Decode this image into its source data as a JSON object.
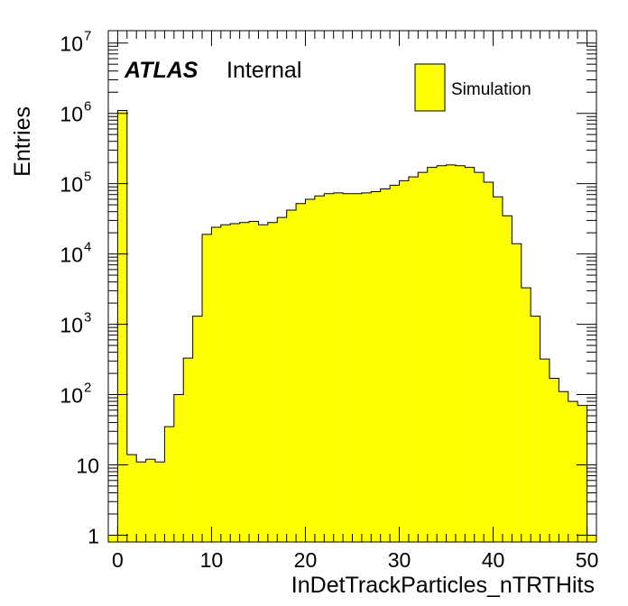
{
  "chart_data": {
    "type": "bar",
    "title": "",
    "xlabel": "InDetTrackParticles_nTRTHits",
    "ylabel": "Entries",
    "ylog": true,
    "xlim": [
      -1,
      51
    ],
    "ylim": [
      0.8,
      15000000
    ],
    "x_ticks": [
      0,
      10,
      20,
      30,
      40,
      50
    ],
    "y_ticks": [
      {
        "value": 1,
        "base": "1",
        "exp": ""
      },
      {
        "value": 10,
        "base": "10",
        "exp": ""
      },
      {
        "value": 100,
        "base": "10",
        "exp": "2"
      },
      {
        "value": 1000,
        "base": "10",
        "exp": "3"
      },
      {
        "value": 10000,
        "base": "10",
        "exp": "4"
      },
      {
        "value": 100000,
        "base": "10",
        "exp": "5"
      },
      {
        "value": 1000000,
        "base": "10",
        "exp": "6"
      },
      {
        "value": 10000000,
        "base": "10",
        "exp": "7"
      }
    ],
    "bin_width": 1,
    "series": [
      {
        "name": "Simulation",
        "color": "#ffff00",
        "x": [
          -1,
          0,
          1,
          2,
          3,
          4,
          5,
          6,
          7,
          8,
          9,
          10,
          11,
          12,
          13,
          14,
          15,
          16,
          17,
          18,
          19,
          20,
          21,
          22,
          23,
          24,
          25,
          26,
          27,
          28,
          29,
          30,
          31,
          32,
          33,
          34,
          35,
          36,
          37,
          38,
          39,
          40,
          41,
          42,
          43,
          44,
          45,
          46,
          47,
          48,
          49,
          50
        ],
        "values": [
          1,
          1100000,
          14,
          11,
          12,
          11,
          35,
          100,
          330,
          1300,
          19000,
          24000,
          26000,
          27000,
          28000,
          29000,
          26000,
          28000,
          33000,
          42000,
          52000,
          60000,
          67000,
          72000,
          74000,
          72000,
          72000,
          74000,
          77000,
          84000,
          95000,
          110000,
          125000,
          145000,
          170000,
          180000,
          185000,
          180000,
          170000,
          145000,
          105000,
          65000,
          35000,
          14000,
          3300,
          1300,
          320,
          170,
          110,
          80,
          70,
          1
        ]
      }
    ]
  },
  "annotation": {
    "atlas": "ATLAS",
    "internal": "Internal"
  },
  "legend": {
    "label": "Simulation",
    "position": "top-right"
  }
}
